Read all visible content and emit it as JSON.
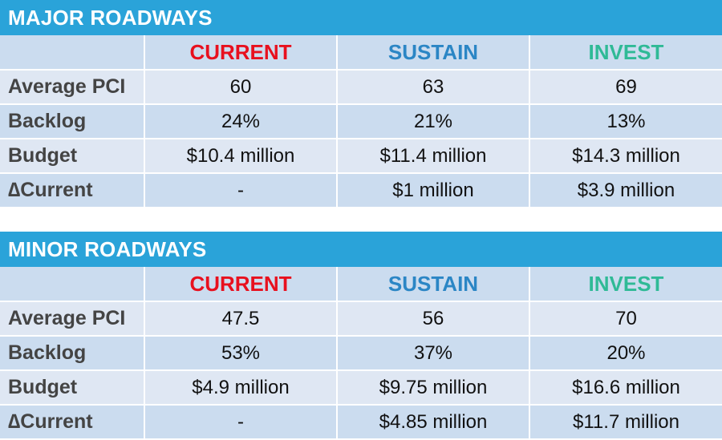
{
  "colors": {
    "header_bar": "#2aa3d9",
    "current": "#e8101e",
    "sustain": "#2b86c5",
    "invest": "#2fba96"
  },
  "columns": {
    "current": "CURRENT",
    "sustain": "SUSTAIN",
    "invest": "INVEST"
  },
  "major": {
    "title": "MAJOR ROADWAYS",
    "rows": [
      {
        "label": "Average PCI",
        "current": "60",
        "sustain": "63",
        "invest": "69"
      },
      {
        "label": "Backlog",
        "current": "24%",
        "sustain": "21%",
        "invest": "13%"
      },
      {
        "label": "Budget",
        "current": "$10.4 million",
        "sustain": "$11.4 million",
        "invest": "$14.3 million"
      },
      {
        "label": "∆Current",
        "current": "-",
        "sustain": "$1 million",
        "invest": "$3.9 million"
      }
    ]
  },
  "minor": {
    "title": "MINOR ROADWAYS",
    "rows": [
      {
        "label": "Average PCI",
        "current": "47.5",
        "sustain": "56",
        "invest": "70"
      },
      {
        "label": "Backlog",
        "current": "53%",
        "sustain": "37%",
        "invest": "20%"
      },
      {
        "label": "Budget",
        "current": "$4.9 million",
        "sustain": "$9.75 million",
        "invest": "$16.6 million"
      },
      {
        "label": "∆Current",
        "current": "-",
        "sustain": "$4.85 million",
        "invest": "$11.7 million"
      }
    ]
  }
}
